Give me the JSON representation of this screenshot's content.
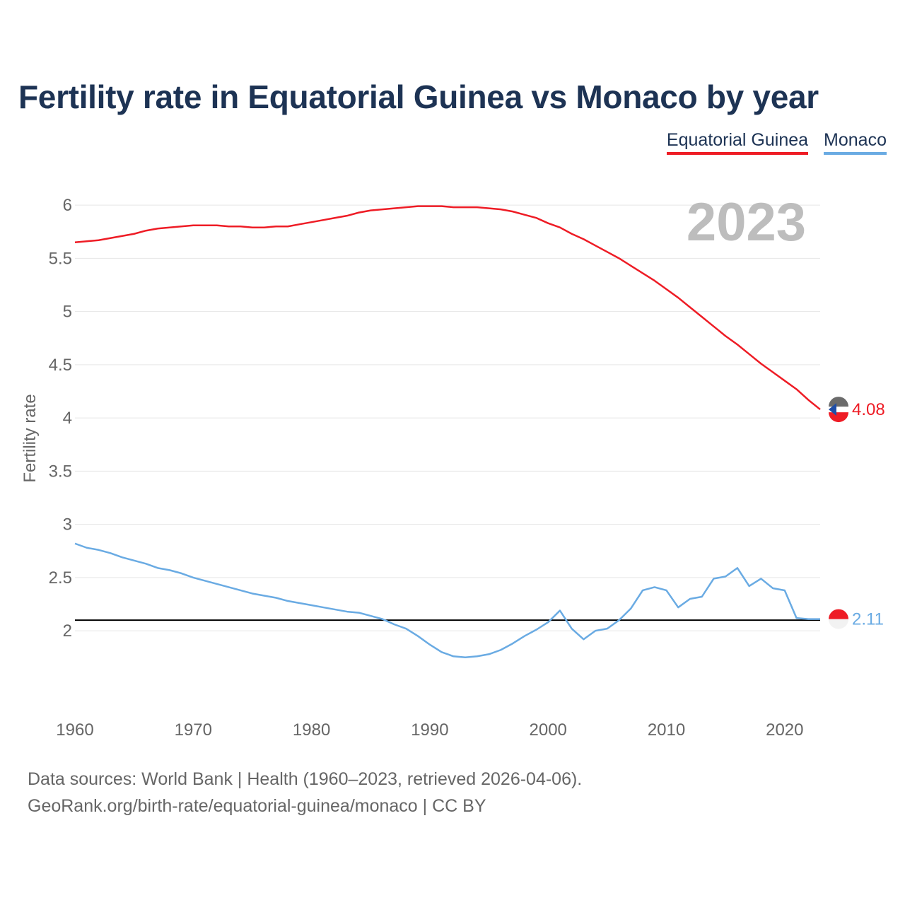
{
  "title": "Fertility rate in Equatorial Guinea vs Monaco by year",
  "legend": [
    {
      "label": "Equatorial Guinea",
      "color": "#ee1c25"
    },
    {
      "label": "Monaco",
      "color": "#6aabe3"
    }
  ],
  "year_watermark": "2023",
  "source_line1": "Data sources: World Bank | Health (1960–2023, retrieved 2026-04-06).",
  "source_line2": "GeoRank.org/birth-rate/equatorial-guinea/monaco | CC BY",
  "chart_data": {
    "type": "line",
    "title": "Fertility rate in Equatorial Guinea vs Monaco by year",
    "xlabel": "",
    "ylabel": "Fertility rate",
    "xlim": [
      1960,
      2023
    ],
    "ylim": [
      1.35,
      6.2
    ],
    "xticks": [
      1960,
      1970,
      1980,
      1990,
      2000,
      2010,
      2020
    ],
    "yticks": [
      2,
      2.5,
      3,
      3.5,
      4,
      4.5,
      5,
      5.5,
      6
    ],
    "ytick_labels": [
      "2",
      "2.5",
      "3",
      "3.5",
      "4",
      "4.5",
      "5",
      "5.5",
      "6"
    ],
    "grid": true,
    "legend_position": "top-right",
    "reference_line": {
      "y": 2.1,
      "color": "#000000"
    },
    "series": [
      {
        "name": "Equatorial Guinea",
        "color": "#ee1c25",
        "end_label": "4.08",
        "x": [
          1960,
          1961,
          1962,
          1963,
          1964,
          1965,
          1966,
          1967,
          1968,
          1969,
          1970,
          1971,
          1972,
          1973,
          1974,
          1975,
          1976,
          1977,
          1978,
          1979,
          1980,
          1981,
          1982,
          1983,
          1984,
          1985,
          1986,
          1987,
          1988,
          1989,
          1990,
          1991,
          1992,
          1993,
          1994,
          1995,
          1996,
          1997,
          1998,
          1999,
          2000,
          2001,
          2002,
          2003,
          2004,
          2005,
          2006,
          2007,
          2008,
          2009,
          2010,
          2011,
          2012,
          2013,
          2014,
          2015,
          2016,
          2017,
          2018,
          2019,
          2020,
          2021,
          2022,
          2023
        ],
        "values": [
          5.65,
          5.66,
          5.67,
          5.69,
          5.71,
          5.73,
          5.76,
          5.78,
          5.79,
          5.8,
          5.81,
          5.81,
          5.81,
          5.8,
          5.8,
          5.79,
          5.79,
          5.8,
          5.8,
          5.82,
          5.84,
          5.86,
          5.88,
          5.9,
          5.93,
          5.95,
          5.96,
          5.97,
          5.98,
          5.99,
          5.99,
          5.99,
          5.98,
          5.98,
          5.98,
          5.97,
          5.96,
          5.94,
          5.91,
          5.88,
          5.83,
          5.79,
          5.73,
          5.68,
          5.62,
          5.56,
          5.5,
          5.43,
          5.36,
          5.29,
          5.21,
          5.13,
          5.04,
          4.95,
          4.86,
          4.77,
          4.69,
          4.6,
          4.51,
          4.43,
          4.35,
          4.27,
          4.17,
          4.08
        ]
      },
      {
        "name": "Monaco",
        "color": "#6aabe3",
        "end_label": "2.11",
        "x": [
          1960,
          1961,
          1962,
          1963,
          1964,
          1965,
          1966,
          1967,
          1968,
          1969,
          1970,
          1971,
          1972,
          1973,
          1974,
          1975,
          1976,
          1977,
          1978,
          1979,
          1980,
          1981,
          1982,
          1983,
          1984,
          1985,
          1986,
          1987,
          1988,
          1989,
          1990,
          1991,
          1992,
          1993,
          1994,
          1995,
          1996,
          1997,
          1998,
          1999,
          2000,
          2001,
          2002,
          2003,
          2004,
          2005,
          2006,
          2007,
          2008,
          2009,
          2010,
          2011,
          2012,
          2013,
          2014,
          2015,
          2016,
          2017,
          2018,
          2019,
          2020,
          2021,
          2022,
          2023
        ],
        "values": [
          2.82,
          2.78,
          2.76,
          2.73,
          2.69,
          2.66,
          2.63,
          2.59,
          2.57,
          2.54,
          2.5,
          2.47,
          2.44,
          2.41,
          2.38,
          2.35,
          2.33,
          2.31,
          2.28,
          2.26,
          2.24,
          2.22,
          2.2,
          2.18,
          2.17,
          2.14,
          2.11,
          2.06,
          2.02,
          1.95,
          1.87,
          1.8,
          1.76,
          1.75,
          1.76,
          1.78,
          1.82,
          1.88,
          1.95,
          2.01,
          2.08,
          2.19,
          2.02,
          1.92,
          2.0,
          2.02,
          2.1,
          2.21,
          2.38,
          2.41,
          2.38,
          2.22,
          2.3,
          2.32,
          2.49,
          2.51,
          2.59,
          2.42,
          2.49,
          2.4,
          2.38,
          2.12,
          2.11,
          2.11
        ]
      }
    ]
  }
}
